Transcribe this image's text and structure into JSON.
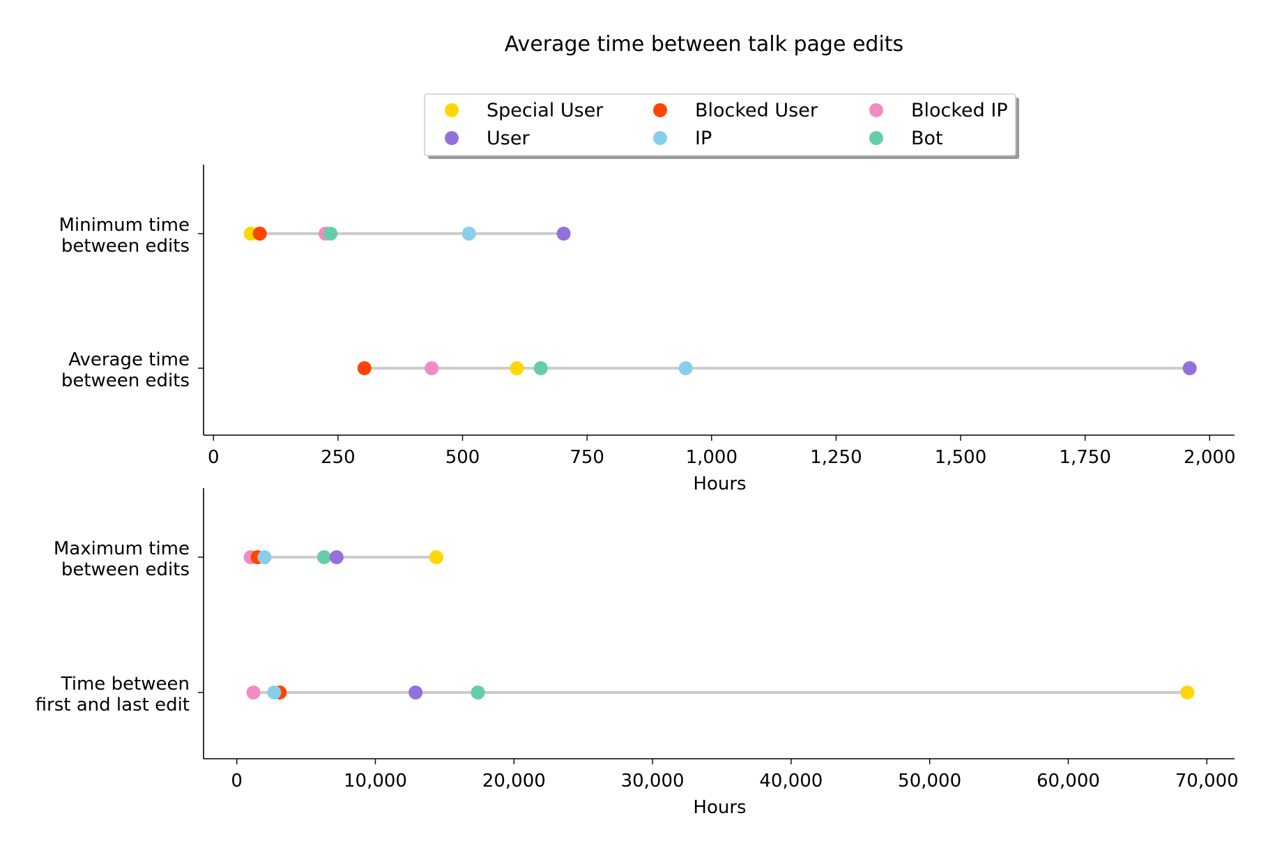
{
  "chart_data": {
    "type": "scatter",
    "title": "Average time between talk page edits",
    "legend": {
      "placement": "top-center",
      "entries": [
        {
          "name": "Special User",
          "color": "#FFD700"
        },
        {
          "name": "Blocked User",
          "color": "#FF4500"
        },
        {
          "name": "Blocked IP",
          "color": "#F08CC1"
        },
        {
          "name": "User",
          "color": "#9370DB"
        },
        {
          "name": "IP",
          "color": "#87CEEB"
        },
        {
          "name": "Bot",
          "color": "#66CDAA"
        }
      ]
    },
    "panels": [
      {
        "xlabel": "Hours",
        "xlim": [
          -20,
          2050
        ],
        "xticks": [
          0,
          250,
          500,
          750,
          1000,
          1250,
          1500,
          1750,
          2000
        ],
        "xtick_labels": [
          "0",
          "250",
          "500",
          "750",
          "1,000",
          "1,250",
          "1,500",
          "1,750",
          "2,000"
        ],
        "rows": [
          {
            "label": [
              "Minimum time",
              "between edits"
            ],
            "values": {
              "Special User": 75,
              "Blocked User": 93,
              "Blocked IP": 225,
              "User": 703,
              "IP": 513,
              "Bot": 235
            }
          },
          {
            "label": [
              "Average time",
              "between edits"
            ],
            "values": {
              "Special User": 609,
              "Blocked User": 303,
              "Blocked IP": 438,
              "User": 1960,
              "IP": 948,
              "Bot": 657
            }
          }
        ]
      },
      {
        "xlabel": "Hours",
        "xlim": [
          -2400,
          72000
        ],
        "xticks": [
          0,
          10000,
          20000,
          30000,
          40000,
          50000,
          60000,
          70000
        ],
        "xtick_labels": [
          "0",
          "10,000",
          "20,000",
          "30,000",
          "40,000",
          "50,000",
          "60,000",
          "70,000"
        ],
        "rows": [
          {
            "label": [
              "Maximum time",
              "between edits"
            ],
            "values": {
              "Special User": 14400,
              "Blocked User": 1500,
              "Blocked IP": 1000,
              "User": 7200,
              "IP": 2000,
              "Bot": 6300
            }
          },
          {
            "label": [
              "Time between",
              "first and last edit"
            ],
            "values": {
              "Special User": 68600,
              "Blocked User": 3100,
              "Blocked IP": 1200,
              "User": 12900,
              "IP": 2700,
              "Bot": 17400
            }
          }
        ]
      }
    ]
  }
}
